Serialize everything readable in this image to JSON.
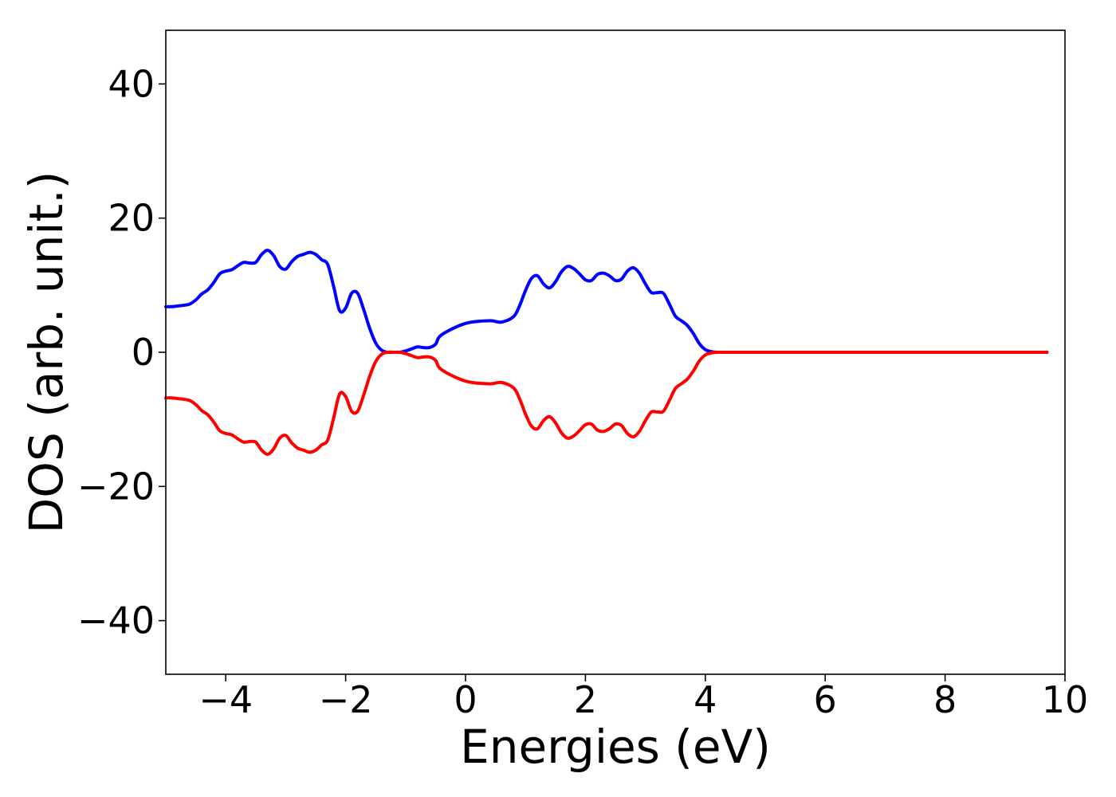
{
  "chart_data": {
    "type": "line",
    "title": "",
    "xlabel": "Energies (eV)",
    "ylabel": "DOS (arb. unit.)",
    "xlim": [
      -5,
      10
    ],
    "ylim": [
      -48,
      48
    ],
    "xticks": [
      -4,
      -2,
      0,
      2,
      4,
      6,
      8,
      10
    ],
    "yticks": [
      -40,
      -20,
      0,
      20,
      40
    ],
    "xtick_labels": [
      "−4",
      "−2",
      "0",
      "2",
      "4",
      "6",
      "8",
      "10"
    ],
    "ytick_labels": [
      "−40",
      "−20",
      "0",
      "20",
      "40"
    ],
    "grid": false,
    "legend": "none",
    "series": [
      {
        "color": "#0000ff",
        "x": [
          -5.0,
          -4.9,
          -4.8,
          -4.7,
          -4.6,
          -4.5,
          -4.4,
          -4.3,
          -4.2,
          -4.1,
          -4.0,
          -3.9,
          -3.8,
          -3.7,
          -3.6,
          -3.5,
          -3.4,
          -3.3,
          -3.2,
          -3.1,
          -3.0,
          -2.9,
          -2.8,
          -2.7,
          -2.6,
          -2.5,
          -2.4,
          -2.3,
          -2.2,
          -2.1,
          -2.0,
          -1.9,
          -1.8,
          -1.7,
          -1.6,
          -1.5,
          -1.4,
          -1.3,
          -1.2,
          -1.1,
          -1.0,
          -0.9,
          -0.8,
          -0.7,
          -0.6,
          -0.5,
          -0.4,
          0.0,
          0.4,
          0.6,
          0.8,
          0.9,
          1.0,
          1.1,
          1.2,
          1.3,
          1.4,
          1.5,
          1.6,
          1.7,
          1.8,
          1.9,
          2.0,
          2.1,
          2.2,
          2.3,
          2.4,
          2.5,
          2.6,
          2.7,
          2.8,
          2.9,
          3.0,
          3.1,
          3.2,
          3.3,
          3.4,
          3.5,
          3.6,
          3.7,
          3.8,
          3.9,
          4.0,
          4.1,
          4.2,
          4.3,
          4.4,
          4.5,
          4.6,
          4.7,
          4.8,
          4.9,
          5.0,
          5.1,
          5.2,
          5.3,
          5.4,
          5.5,
          5.6,
          5.7,
          5.8,
          5.9,
          6.0,
          6.1,
          6.2,
          7.0,
          8.0,
          9.0,
          9.7
        ],
        "y": [
          6.8,
          6.8,
          6.9,
          7.0,
          7.2,
          7.8,
          8.7,
          9.3,
          10.4,
          11.7,
          12.1,
          12.3,
          12.9,
          13.4,
          13.3,
          13.4,
          14.6,
          15.2,
          14.4,
          12.8,
          12.4,
          13.5,
          14.3,
          14.6,
          14.9,
          14.6,
          13.8,
          13.1,
          9.8,
          6.2,
          6.6,
          8.8,
          8.8,
          6.4,
          3.6,
          1.4,
          0.3,
          0.0,
          0.0,
          0.0,
          0.2,
          0.5,
          0.8,
          0.7,
          0.7,
          1.2,
          2.6,
          4.3,
          4.7,
          4.5,
          5.3,
          6.9,
          9.2,
          11.0,
          11.4,
          10.2,
          9.6,
          10.5,
          12.0,
          12.8,
          12.5,
          11.7,
          10.8,
          10.7,
          11.6,
          11.8,
          11.4,
          10.7,
          10.9,
          12.1,
          12.6,
          11.8,
          10.2,
          8.9,
          8.9,
          8.8,
          7.2,
          5.4,
          4.7,
          4.0,
          2.8,
          1.3,
          0.4,
          0.1,
          0.0,
          0.0,
          0.0,
          0.0,
          0.0,
          0.0,
          0.0,
          0.0,
          0.0,
          0.0,
          0.0,
          0.0,
          0.0,
          0.0,
          0.0,
          0.0,
          0.0,
          0.0,
          0.0,
          0.0,
          0.0,
          0.0,
          0.0,
          0.0,
          0.0
        ]
      },
      {
        "color": "#ff0000",
        "x": [
          -5.0,
          -4.9,
          -4.8,
          -4.7,
          -4.6,
          -4.5,
          -4.4,
          -4.3,
          -4.2,
          -4.1,
          -4.0,
          -3.9,
          -3.8,
          -3.7,
          -3.6,
          -3.5,
          -3.4,
          -3.3,
          -3.2,
          -3.1,
          -3.0,
          -2.9,
          -2.8,
          -2.7,
          -2.6,
          -2.5,
          -2.4,
          -2.3,
          -2.2,
          -2.1,
          -2.0,
          -1.9,
          -1.8,
          -1.7,
          -1.6,
          -1.5,
          -1.4,
          -1.3,
          -1.2,
          -1.1,
          -1.0,
          -0.9,
          -0.8,
          -0.7,
          -0.6,
          -0.5,
          -0.4,
          0.0,
          0.4,
          0.6,
          0.8,
          0.9,
          1.0,
          1.1,
          1.2,
          1.3,
          1.4,
          1.5,
          1.6,
          1.7,
          1.8,
          1.9,
          2.0,
          2.1,
          2.2,
          2.3,
          2.4,
          2.5,
          2.6,
          2.7,
          2.8,
          2.9,
          3.0,
          3.1,
          3.2,
          3.3,
          3.4,
          3.5,
          3.6,
          3.7,
          3.8,
          3.9,
          4.0,
          4.1,
          4.2,
          4.3,
          4.4,
          4.5,
          4.6,
          4.7,
          4.8,
          4.9,
          5.0,
          5.1,
          5.2,
          5.3,
          5.4,
          5.5,
          5.6,
          5.7,
          5.8,
          5.9,
          6.0,
          6.1,
          6.2,
          7.0,
          8.0,
          9.0,
          9.7
        ],
        "y": [
          -6.8,
          -6.8,
          -6.9,
          -7.0,
          -7.2,
          -7.8,
          -8.7,
          -9.3,
          -10.4,
          -11.7,
          -12.1,
          -12.3,
          -12.9,
          -13.4,
          -13.3,
          -13.4,
          -14.6,
          -15.2,
          -14.4,
          -12.8,
          -12.4,
          -13.5,
          -14.3,
          -14.6,
          -14.9,
          -14.6,
          -13.8,
          -13.1,
          -9.8,
          -6.2,
          -6.6,
          -8.8,
          -8.8,
          -6.4,
          -3.6,
          -1.4,
          -0.3,
          0.0,
          0.0,
          0.0,
          -0.2,
          -0.5,
          -0.8,
          -0.7,
          -0.7,
          -1.2,
          -2.6,
          -4.3,
          -4.7,
          -4.5,
          -5.3,
          -6.9,
          -9.2,
          -11.0,
          -11.4,
          -10.2,
          -9.6,
          -10.5,
          -12.0,
          -12.8,
          -12.5,
          -11.7,
          -10.8,
          -10.7,
          -11.6,
          -11.8,
          -11.4,
          -10.7,
          -10.9,
          -12.1,
          -12.6,
          -11.8,
          -10.2,
          -8.9,
          -8.9,
          -8.8,
          -7.2,
          -5.4,
          -4.7,
          -4.0,
          -2.8,
          -1.3,
          -0.4,
          -0.1,
          0.0,
          0.0,
          0.0,
          0.0,
          0.0,
          0.0,
          0.0,
          0.0,
          0.0,
          0.0,
          0.0,
          0.0,
          0.0,
          0.0,
          0.0,
          0.0,
          0.0,
          0.0,
          0.0,
          0.0,
          0.0,
          0.0,
          0.0,
          0.0,
          0.0
        ]
      }
    ]
  }
}
